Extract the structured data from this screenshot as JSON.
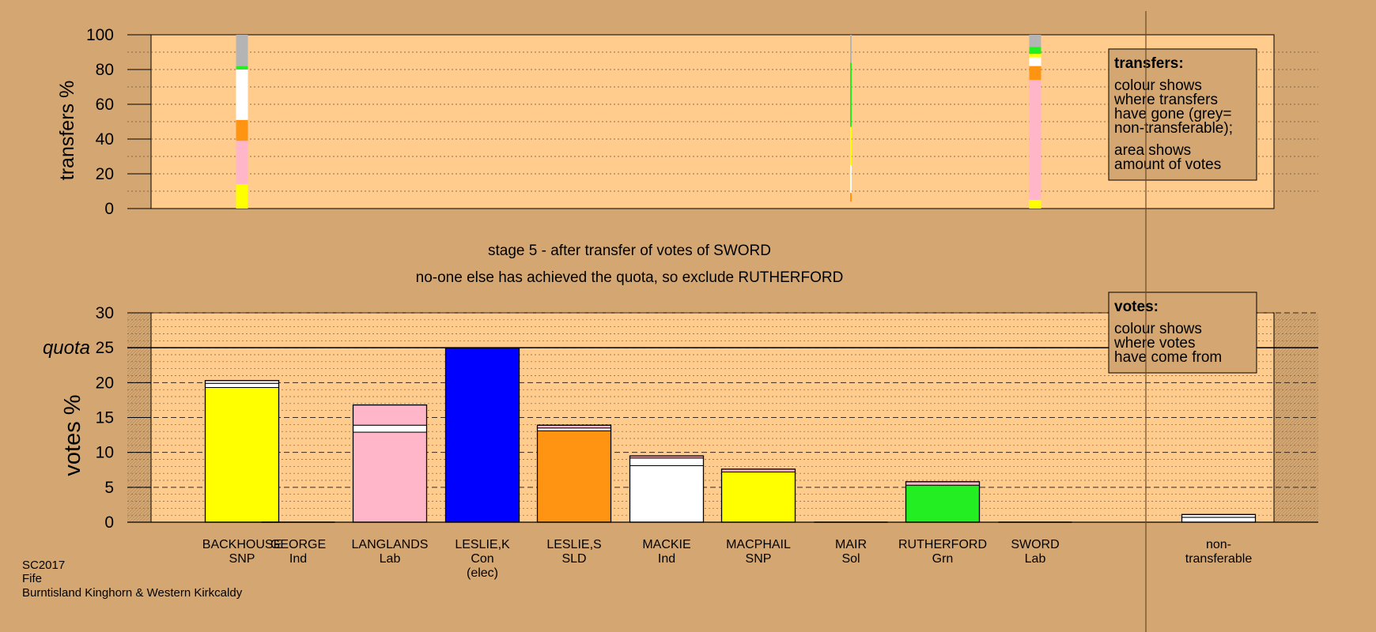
{
  "chart_data": {
    "type": "bar",
    "stage_title": "stage 5 - after transfer of votes of SWORD",
    "stage_subtitle": "no-one else has achieved the quota, so exclude RUTHERFORD",
    "transfers_panel": {
      "ylabel": "transfers %",
      "ylim": [
        0,
        100
      ],
      "yticks": [
        "0",
        "20",
        "40",
        "60",
        "80",
        "100"
      ],
      "legend": {
        "title": "transfers:",
        "lines1": [
          "colour shows",
          "where transfers",
          "have gone (grey=",
          "non-transferable);"
        ],
        "lines2": [
          "area shows",
          "amount of votes"
        ]
      },
      "columns": [
        {
          "candidate": "BACKHOUSE",
          "thin": false,
          "segments": [
            {
              "color": "#ffff00",
              "from": 0,
              "to": 14
            },
            {
              "color": "#ffb6c8",
              "from": 14,
              "to": 39
            },
            {
              "color": "#ff9412",
              "from": 39,
              "to": 51
            },
            {
              "color": "#ffffff",
              "from": 51,
              "to": 80
            },
            {
              "color": "#22ee22",
              "from": 80,
              "to": 82
            },
            {
              "color": "#b4b4b4",
              "from": 82,
              "to": 100
            }
          ]
        },
        {
          "candidate": "MAIR",
          "thin": true,
          "segments": [
            {
              "color": "#ff9412",
              "from": 4,
              "to": 9
            },
            {
              "color": "#ffffff",
              "from": 9,
              "to": 25
            },
            {
              "color": "#ffff00",
              "from": 25,
              "to": 47
            },
            {
              "color": "#22ee22",
              "from": 47,
              "to": 84
            },
            {
              "color": "#b4b4b4",
              "from": 84,
              "to": 100
            }
          ]
        },
        {
          "candidate": "SWORD",
          "thin": false,
          "segments": [
            {
              "color": "#ffff00",
              "from": 0,
              "to": 5
            },
            {
              "color": "#ffb6c8",
              "from": 5,
              "to": 74
            },
            {
              "color": "#ff9412",
              "from": 74,
              "to": 82
            },
            {
              "color": "#ffffff",
              "from": 82,
              "to": 87
            },
            {
              "color": "#ffff00",
              "from": 87,
              "to": 89
            },
            {
              "color": "#22ee22",
              "from": 89,
              "to": 93
            },
            {
              "color": "#b4b4b4",
              "from": 93,
              "to": 100
            }
          ]
        }
      ]
    },
    "votes_panel": {
      "ylabel": "votes %",
      "ylim": [
        0,
        30
      ],
      "yticks": [
        "0",
        "5",
        "10",
        "15",
        "20",
        "25",
        "30"
      ],
      "quota_label": "quota",
      "quota_value": 25,
      "legend": {
        "title": "votes:",
        "lines": [
          "colour shows",
          "where votes",
          "have come from"
        ]
      },
      "non_transferable": {
        "line1": "non-",
        "line2": "transferable",
        "value": 1.1,
        "segments": [
          {
            "color": "#ffffff",
            "from": 0,
            "to": 0.7
          },
          {
            "color": "#ffffff",
            "from": 0.7,
            "to": 1.1
          }
        ]
      }
    },
    "candidates": [
      {
        "name": "BACKHOUSE",
        "party": "SNP",
        "elected": "",
        "value": 20.3,
        "segments": [
          {
            "color": "#ffff00",
            "from": 0,
            "to": 19.3
          },
          {
            "color": "#ffffff",
            "from": 19.3,
            "to": 19.9
          },
          {
            "color": "#ffffff",
            "from": 19.9,
            "to": 20.3
          }
        ]
      },
      {
        "name": "GEORGE",
        "party": "Ind",
        "elected": "",
        "value": 0,
        "segments": []
      },
      {
        "name": "LANGLANDS",
        "party": "Lab",
        "elected": "",
        "value": 16.8,
        "segments": [
          {
            "color": "#ffb6c8",
            "from": 0,
            "to": 12.9
          },
          {
            "color": "#ffffff",
            "from": 12.9,
            "to": 13.9
          },
          {
            "color": "#ffb6c8",
            "from": 13.9,
            "to": 16.8
          }
        ]
      },
      {
        "name": "LESLIE,K",
        "party": "Con",
        "elected": "(elec)",
        "value": 25,
        "segments": [
          {
            "color": "#0000ff",
            "from": 0,
            "to": 25
          }
        ]
      },
      {
        "name": "LESLIE,S",
        "party": "SLD",
        "elected": "",
        "value": 13.9,
        "segments": [
          {
            "color": "#ff9412",
            "from": 0,
            "to": 13.1
          },
          {
            "color": "#ffffff",
            "from": 13.1,
            "to": 13.5
          },
          {
            "color": "#ffb6c8",
            "from": 13.5,
            "to": 13.9
          }
        ]
      },
      {
        "name": "MACKIE",
        "party": "Ind",
        "elected": "",
        "value": 9.5,
        "segments": [
          {
            "color": "#ffffff",
            "from": 0,
            "to": 8.1
          },
          {
            "color": "#ffffff",
            "from": 8.1,
            "to": 9.2
          },
          {
            "color": "#ffb6c8",
            "from": 9.2,
            "to": 9.5
          }
        ]
      },
      {
        "name": "MACPHAIL",
        "party": "SNP",
        "elected": "",
        "value": 7.6,
        "segments": [
          {
            "color": "#ffff00",
            "from": 0,
            "to": 7.2
          },
          {
            "color": "#ffb6c8",
            "from": 7.2,
            "to": 7.6
          }
        ]
      },
      {
        "name": "MAIR",
        "party": "Sol",
        "elected": "",
        "value": 0,
        "segments": []
      },
      {
        "name": "RUTHERFORD",
        "party": "Grn",
        "elected": "",
        "value": 5.8,
        "segments": [
          {
            "color": "#22ee22",
            "from": 0,
            "to": 5.3
          },
          {
            "color": "#ffb6c8",
            "from": 5.3,
            "to": 5.8
          }
        ]
      },
      {
        "name": "SWORD",
        "party": "Lab",
        "elected": "",
        "value": 0,
        "segments": []
      }
    ],
    "footer": [
      "SC2017",
      "Fife",
      "Burntisland Kinghorn & Western Kirkcaldy"
    ]
  }
}
